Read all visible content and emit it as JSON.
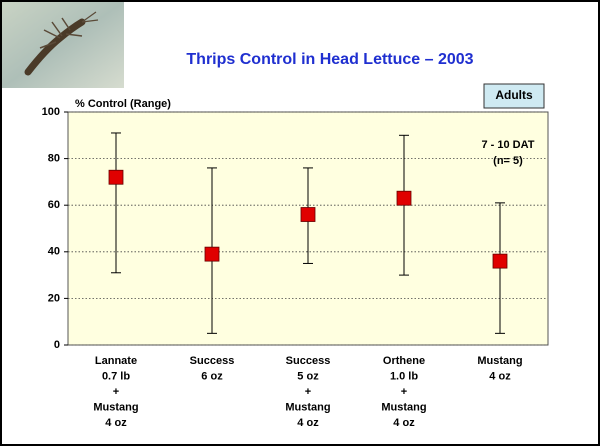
{
  "chart_data": {
    "type": "range",
    "title": "Thrips Control in Head Lettuce – 2003",
    "badge": "Adults",
    "y_label": "% Control (Range)",
    "annotations": [
      "7 - 10 DAT",
      "(n= 5)"
    ],
    "categories": [
      [
        "Lannate",
        "0.7 lb",
        "+",
        "Mustang",
        "4 oz"
      ],
      [
        "Success",
        "6  oz"
      ],
      [
        "Success",
        "5 oz",
        "+",
        "Mustang",
        "4 oz"
      ],
      [
        "Orthene",
        "1.0 lb",
        "+",
        "Mustang",
        "4 oz"
      ],
      [
        "Mustang",
        "4 oz"
      ]
    ],
    "values": [
      72,
      39,
      56,
      63,
      36
    ],
    "low": [
      31,
      5,
      35,
      30,
      5
    ],
    "high": [
      91,
      76,
      76,
      90,
      61
    ],
    "color": "#e00000",
    "ylim": [
      0,
      100
    ],
    "yticks": [
      0,
      20,
      40,
      60,
      80,
      100
    ],
    "grid": true
  }
}
